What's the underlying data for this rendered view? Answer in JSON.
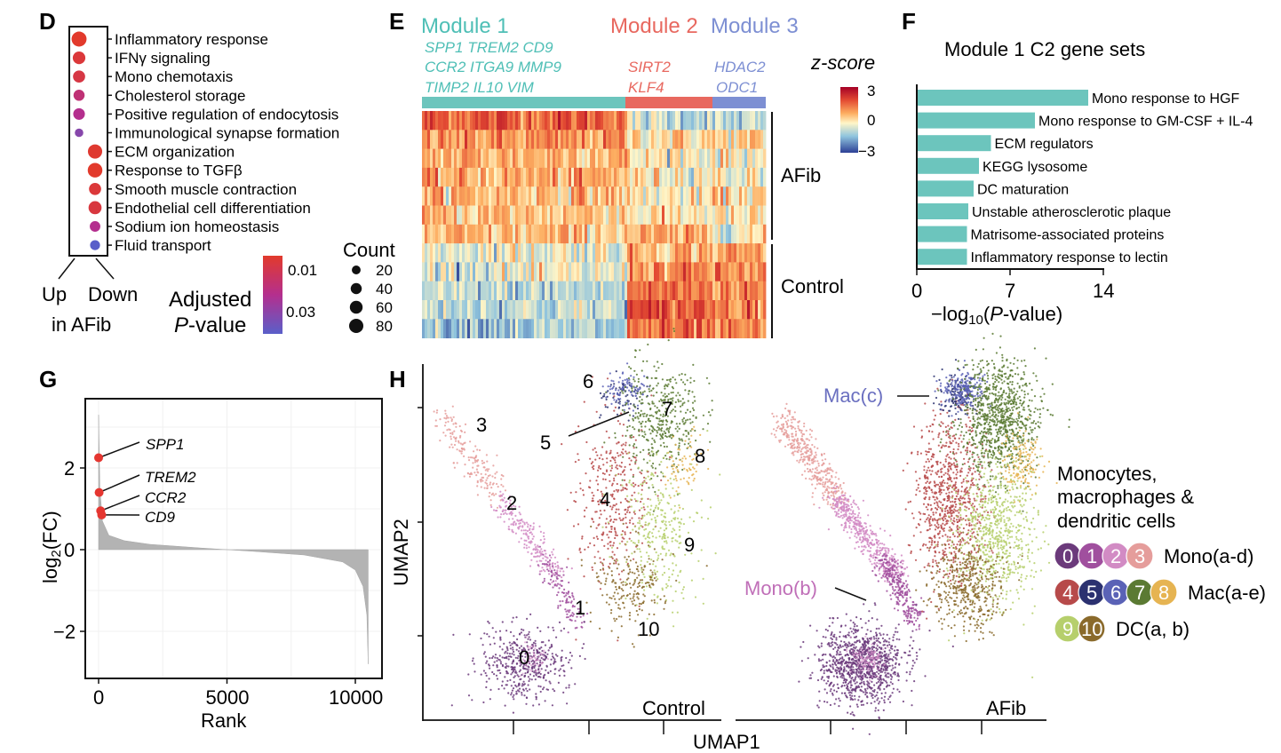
{
  "panel_letters": {
    "d": "D",
    "e": "E",
    "f": "F",
    "g": "G",
    "h": "H"
  },
  "colors": {
    "teal": "#6cc5bd",
    "module1": "#4fbfb6",
    "module2": "#e8685f",
    "module3": "#7d8fd3",
    "dot_red": "#e53630",
    "grey": "#b3b3b3",
    "high": "#b2182b",
    "low": "#2c3f95"
  },
  "panel_d": {
    "terms": [
      {
        "label": "Inflammatory response",
        "count": 80,
        "padj": 0.005,
        "dir": "up"
      },
      {
        "label": "IFNγ signaling",
        "count": 50,
        "padj": 0.008,
        "dir": "up"
      },
      {
        "label": "Mono chemotaxis",
        "count": 45,
        "padj": 0.01,
        "dir": "up"
      },
      {
        "label": "Cholesterol storage",
        "count": 35,
        "padj": 0.02,
        "dir": "up"
      },
      {
        "label": "Positive regulation of endocytosis",
        "count": 40,
        "padj": 0.025,
        "dir": "up"
      },
      {
        "label": "Immunological synapse formation",
        "count": 15,
        "padj": 0.035,
        "dir": "up"
      },
      {
        "label": "ECM organization",
        "count": 70,
        "padj": 0.006,
        "dir": "down"
      },
      {
        "label": "Response to TGFβ",
        "count": 75,
        "padj": 0.005,
        "dir": "down"
      },
      {
        "label": "Smooth muscle contraction",
        "count": 45,
        "padj": 0.008,
        "dir": "down"
      },
      {
        "label": "Endothelial cell differentiation",
        "count": 55,
        "padj": 0.009,
        "dir": "down"
      },
      {
        "label": "Sodium ion homeostasis",
        "count": 30,
        "padj": 0.025,
        "dir": "down"
      },
      {
        "label": "Fluid transport",
        "count": 25,
        "padj": 0.045,
        "dir": "down"
      }
    ],
    "up_label": "Up",
    "down_label": "Down",
    "in_afib": "in AFib",
    "padj_title_1": "Adjusted",
    "padj_title_2a": "P",
    "padj_title_2b": "-value",
    "padj_ticks": [
      "0.01",
      "0.03"
    ],
    "count_title": "Count",
    "count_ticks": [
      "20",
      "40",
      "60",
      "80"
    ]
  },
  "panel_e": {
    "modules": [
      "Module 1",
      "Module 2",
      "Module 3"
    ],
    "module1_genes": [
      "SPP1 TREM2 CD9",
      "CCR2 ITGA9 MMP9",
      "TIMP2 IL10 VIM"
    ],
    "module2_genes": [
      "SIRT2",
      "KLF4"
    ],
    "module3_genes": [
      "HDAC2",
      "ODC1"
    ],
    "zscore_title": "z-score",
    "zscore_ticks": [
      "3",
      "0",
      "−3"
    ],
    "groups": [
      "AFib",
      "Control"
    ]
  },
  "panel_f": {
    "title": "Module 1 C2 gene sets",
    "xlabel_pre": "−log",
    "xlabel_sub": "10",
    "xlabel_open": "(",
    "xlabel_p": "P",
    "xlabel_post": "-value)",
    "ticks": [
      "0",
      "7",
      "14"
    ]
  },
  "panel_g": {
    "ylabel_pre": "log",
    "ylabel_sub": "2",
    "ylabel_post": "(FC)",
    "xlabel": "Rank",
    "xticks": [
      "0",
      "5000",
      "10000"
    ],
    "yticks": [
      "2",
      "0",
      "−2"
    ],
    "genes": [
      {
        "label": "SPP1",
        "rank": 0,
        "fc": 2.25
      },
      {
        "label": "TREM2",
        "rank": 20,
        "fc": 1.4
      },
      {
        "label": "CCR2",
        "rank": 80,
        "fc": 0.95
      },
      {
        "label": "CD9",
        "rank": 120,
        "fc": 0.85
      }
    ]
  },
  "panel_h": {
    "ylabel": "UMAP2",
    "xlabel": "UMAP1",
    "control_label": "Control",
    "afib_label": "AFib",
    "cluster_numbers": [
      "0",
      "1",
      "2",
      "3",
      "4",
      "5",
      "6",
      "7",
      "8",
      "9",
      "10"
    ],
    "annotations": [
      "Mac(c)",
      "Mono(b)"
    ],
    "legend_title": [
      "Monocytes,",
      "macrophages &",
      "dendritic cells"
    ],
    "legend_rows": [
      {
        "label": "Mono(a-d)",
        "numbers": [
          "0",
          "1",
          "2",
          "3"
        ],
        "colors": [
          "#6b3a7b",
          "#a04f9e",
          "#d28bc4",
          "#e59d9b"
        ]
      },
      {
        "label": "Mac(a-e)",
        "numbers": [
          "4",
          "5",
          "6",
          "7",
          "8"
        ],
        "colors": [
          "#b74a4a",
          "#2b3170",
          "#5a62b6",
          "#5b7a33",
          "#e6b452"
        ]
      },
      {
        "label": "DC(a, b)",
        "numbers": [
          "9",
          "10"
        ],
        "colors": [
          "#b6cf6c",
          "#8a6a2b"
        ]
      }
    ]
  },
  "chart_data": [
    {
      "type": "bar",
      "orientation": "horizontal",
      "title": "Module 1 C2 gene sets",
      "categories": [
        "Mono response to HGF",
        "Mono response to GM-CSF + IL-4",
        "ECM regulators",
        "KEGG lysosome",
        "DC maturation",
        "Unstable atherosclerotic plaque",
        "Matrisome-associated proteins",
        "Inflammatory response to lectin"
      ],
      "values": [
        12.8,
        8.8,
        5.5,
        4.6,
        4.2,
        3.8,
        3.7,
        3.7
      ],
      "xlabel": "−log10(P-value)",
      "xlim": [
        0,
        14
      ]
    },
    {
      "type": "area",
      "title": "",
      "xlabel": "Rank",
      "ylabel": "log2(FC)",
      "xlim": [
        -500,
        10800
      ],
      "ylim": [
        -2.9,
        3.6
      ],
      "curve_x": [
        0,
        50,
        150,
        400,
        1000,
        2000,
        4000,
        6000,
        8000,
        9500,
        10000,
        10300,
        10450,
        10500
      ],
      "curve_y": [
        3.3,
        1.5,
        0.7,
        0.35,
        0.22,
        0.13,
        0.04,
        -0.04,
        -0.13,
        -0.3,
        -0.5,
        -0.9,
        -1.6,
        -2.8
      ]
    }
  ]
}
